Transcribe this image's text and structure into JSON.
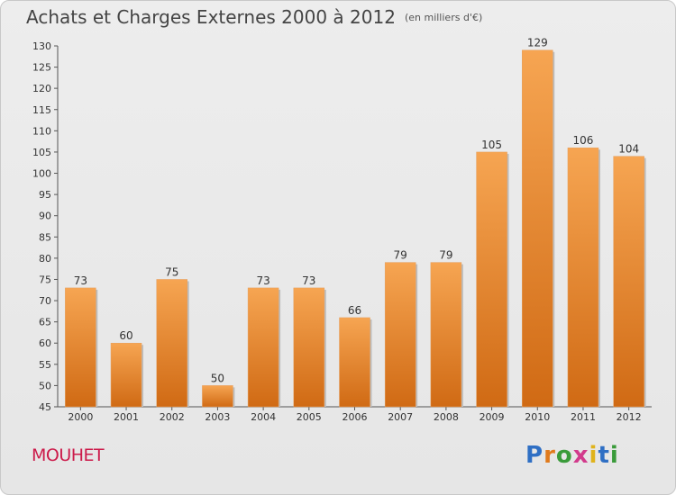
{
  "header": {
    "title": "Achats et Charges Externes 2000 à 2012",
    "unit": "(en milliers d'€)"
  },
  "footer": {
    "commune": "MOUHET",
    "logo": "Proxiti"
  },
  "colors": {
    "bar_top": "#f6a552",
    "bar_bottom": "#d06a14",
    "commune_text": "#cc1a4a"
  },
  "chart_data": {
    "type": "bar",
    "title": "Achats et Charges Externes 2000 à 2012",
    "subtitle": "(en milliers d'€)",
    "categories": [
      "2000",
      "2001",
      "2002",
      "2003",
      "2004",
      "2005",
      "2006",
      "2007",
      "2008",
      "2009",
      "2010",
      "2011",
      "2012"
    ],
    "values": [
      73,
      60,
      75,
      50,
      73,
      73,
      66,
      79,
      79,
      105,
      129,
      106,
      104
    ],
    "xlabel": "",
    "ylabel": "",
    "ylim": [
      45,
      130
    ],
    "yticks": [
      45,
      50,
      55,
      60,
      65,
      70,
      75,
      80,
      85,
      90,
      95,
      100,
      105,
      110,
      115,
      120,
      125,
      130
    ],
    "grid": false,
    "legend": "none",
    "data_labels": true
  }
}
